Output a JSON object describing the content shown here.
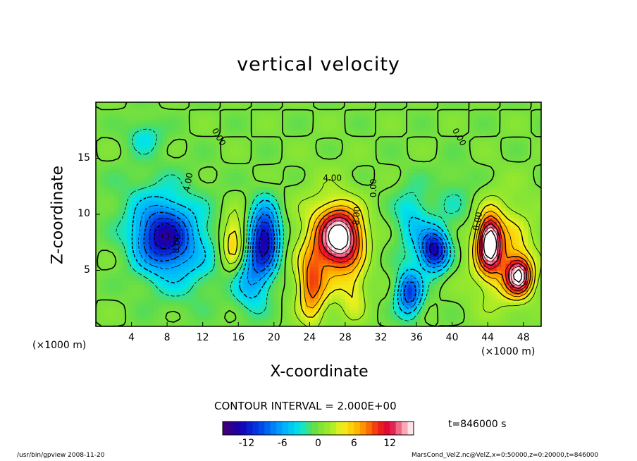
{
  "chart_data": {
    "type": "heatmap",
    "title": "vertical velocity",
    "xlabel": "X-coordinate",
    "ylabel": "Z-coordinate",
    "x_unit_label": "(×1000 m)",
    "x_ticks": [
      4,
      8,
      12,
      16,
      20,
      24,
      28,
      32,
      36,
      40,
      44,
      48
    ],
    "y_ticks": [
      5,
      10,
      15
    ],
    "xlim": [
      0,
      50
    ],
    "ylim": [
      0,
      20
    ],
    "contour_interval_label": "CONTOUR INTERVAL = 2.000E+00",
    "colorbar": {
      "ticks": [
        -12,
        -6,
        0,
        6,
        12
      ],
      "range": [
        -16,
        16
      ]
    },
    "contour_labels": [
      "0.00",
      "4.00",
      "8.00"
    ],
    "time_label": "t=846000 s",
    "blobs": [
      {
        "x": 7.5,
        "z": 8.0,
        "amp": -10,
        "sx": 3.0,
        "sz": 2.6
      },
      {
        "x": 9.5,
        "z": 6.5,
        "amp": -4,
        "sx": 4.5,
        "sz": 4.0
      },
      {
        "x": 6.5,
        "z": 11.0,
        "amp": -2,
        "sx": 5.0,
        "sz": 3.5
      },
      {
        "x": 5.5,
        "z": 17.0,
        "amp": -3,
        "sx": 2.0,
        "sz": 1.5
      },
      {
        "x": 15.5,
        "z": 7.5,
        "amp": 7,
        "sx": 1.4,
        "sz": 2.5
      },
      {
        "x": 19.0,
        "z": 8.0,
        "amp": -13,
        "sx": 1.6,
        "sz": 2.8
      },
      {
        "x": 17.5,
        "z": 4.5,
        "amp": -6,
        "sx": 2.0,
        "sz": 3.0
      },
      {
        "x": 27.5,
        "z": 8.0,
        "amp": 15,
        "sx": 2.3,
        "sz": 2.4
      },
      {
        "x": 26.0,
        "z": 7.0,
        "amp": 5,
        "sx": 3.5,
        "sz": 5.0
      },
      {
        "x": 24.2,
        "z": 3.5,
        "amp": 7,
        "sx": 1.4,
        "sz": 3.0
      },
      {
        "x": 29.0,
        "z": 3.0,
        "amp": 3,
        "sx": 1.4,
        "sz": 2.5
      },
      {
        "x": 35.5,
        "z": 9.5,
        "amp": -4,
        "sx": 2.0,
        "sz": 3.0
      },
      {
        "x": 38.0,
        "z": 6.8,
        "amp": -13,
        "sx": 1.6,
        "sz": 1.8
      },
      {
        "x": 35.2,
        "z": 3.0,
        "amp": -10,
        "sx": 1.4,
        "sz": 2.0
      },
      {
        "x": 44.2,
        "z": 7.5,
        "amp": 16,
        "sx": 1.2,
        "sz": 2.2
      },
      {
        "x": 47.5,
        "z": 4.5,
        "amp": 14,
        "sx": 1.4,
        "sz": 1.6
      },
      {
        "x": 45.5,
        "z": 6.5,
        "amp": 6,
        "sx": 3.5,
        "sz": 4.5
      },
      {
        "x": 40.5,
        "z": 11.0,
        "amp": -2,
        "sx": 2.5,
        "sz": 3.0
      }
    ]
  },
  "footer": {
    "left": "/usr/bin/gpview  2008-11-20",
    "right": "MarsCond_VelZ.nc@VelZ,x=0:50000,z=0:20000,t=846000"
  }
}
